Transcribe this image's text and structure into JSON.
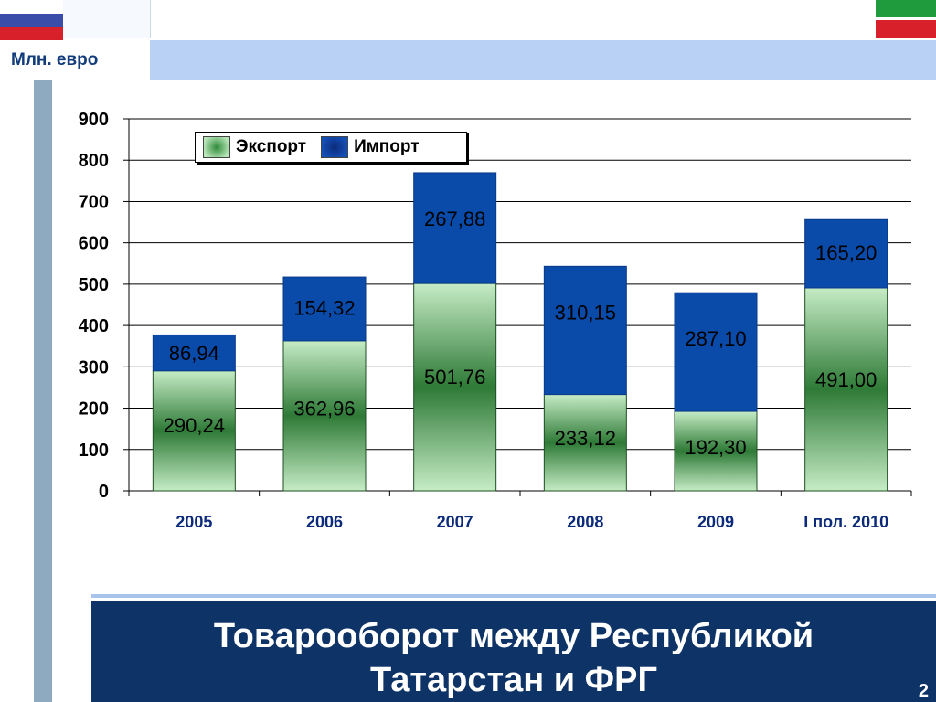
{
  "slide": {
    "unit": "Млн. евро",
    "title_line1": "Товарооборот между Республикой",
    "title_line2": "Татарстан и ФРГ",
    "page_number": "2"
  },
  "flags": {
    "left": [
      "#ffffff",
      "#3a4da8",
      "#d8202a"
    ],
    "right": [
      "#1f9a3d",
      "#ffffff",
      "#d8202a"
    ]
  },
  "chart_data": {
    "type": "bar",
    "stacked": true,
    "categories": [
      "2005",
      "2006",
      "2007",
      "2008",
      "2009",
      "I пол. 2010"
    ],
    "series": [
      {
        "name": "Экспорт",
        "values": [
          290.24,
          362.96,
          501.76,
          233.12,
          192.3,
          491.0
        ],
        "labels": [
          "290,24",
          "362,96",
          "501,76",
          "233,12",
          "192,30",
          "491,00"
        ],
        "color": "#3a9a4a"
      },
      {
        "name": "Импорт",
        "values": [
          86.94,
          154.32,
          267.88,
          310.15,
          287.1,
          165.2
        ],
        "labels": [
          "86,94",
          "154,32",
          "267,88",
          "310,15",
          "287,10",
          "165,20"
        ],
        "color": "#0a4aa8"
      }
    ],
    "ylim": [
      0,
      900
    ],
    "yticks": [
      0,
      100,
      200,
      300,
      400,
      500,
      600,
      700,
      800,
      900
    ],
    "grid": true,
    "legend_position": "top-left"
  }
}
